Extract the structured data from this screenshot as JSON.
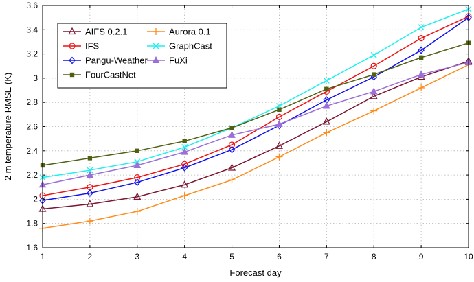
{
  "chart_data": {
    "type": "line",
    "xlabel": "Forecast day",
    "ylabel": "2 m temperature RMSE (K)",
    "xlim": [
      1,
      10
    ],
    "ylim": [
      1.6,
      3.6
    ],
    "xticks": [
      "1",
      "2",
      "3",
      "4",
      "5",
      "6",
      "7",
      "8",
      "9",
      "10"
    ],
    "yticks": [
      "1.6",
      "1.8",
      "2",
      "2.2",
      "2.4",
      "2.6",
      "2.8",
      "3",
      "3.2",
      "3.4",
      "3.6"
    ],
    "grid": true,
    "legend_position": "top-left",
    "x": [
      1,
      2,
      3,
      4,
      5,
      6,
      7,
      8,
      9,
      10
    ],
    "series": [
      {
        "name": "AIFS 0.2.1",
        "color": "#7b1530",
        "marker": "triangle-open",
        "values": [
          1.92,
          1.96,
          2.02,
          2.12,
          2.26,
          2.44,
          2.64,
          2.85,
          3.01,
          3.14
        ]
      },
      {
        "name": "Aurora 0.1",
        "color": "#ff8c1a",
        "marker": "plus",
        "values": [
          1.76,
          1.82,
          1.9,
          2.03,
          2.16,
          2.35,
          2.55,
          2.73,
          2.92,
          3.11
        ]
      },
      {
        "name": "IFS",
        "color": "#ee1111",
        "marker": "circle-open",
        "values": [
          2.03,
          2.1,
          2.18,
          2.29,
          2.45,
          2.68,
          2.89,
          3.1,
          3.33,
          3.51
        ]
      },
      {
        "name": "GraphCast",
        "color": "#1ef0f0",
        "marker": "x",
        "values": [
          2.18,
          2.24,
          2.31,
          2.43,
          2.59,
          2.77,
          2.98,
          3.19,
          3.42,
          3.57
        ]
      },
      {
        "name": "Pangu-Weather",
        "color": "#1111ee",
        "marker": "diamond-open",
        "values": [
          1.99,
          2.05,
          2.14,
          2.26,
          2.41,
          2.61,
          2.82,
          3.01,
          3.23,
          3.5
        ]
      },
      {
        "name": "FuXi",
        "color": "#9b6fd8",
        "marker": "triangle-filled",
        "values": [
          2.12,
          2.2,
          2.28,
          2.39,
          2.53,
          2.62,
          2.77,
          2.89,
          3.03,
          3.13
        ]
      },
      {
        "name": "FourCastNet",
        "color": "#4f6010",
        "marker": "square-filled",
        "values": [
          2.28,
          2.34,
          2.4,
          2.48,
          2.59,
          2.74,
          2.91,
          3.03,
          3.17,
          3.29
        ]
      }
    ]
  }
}
